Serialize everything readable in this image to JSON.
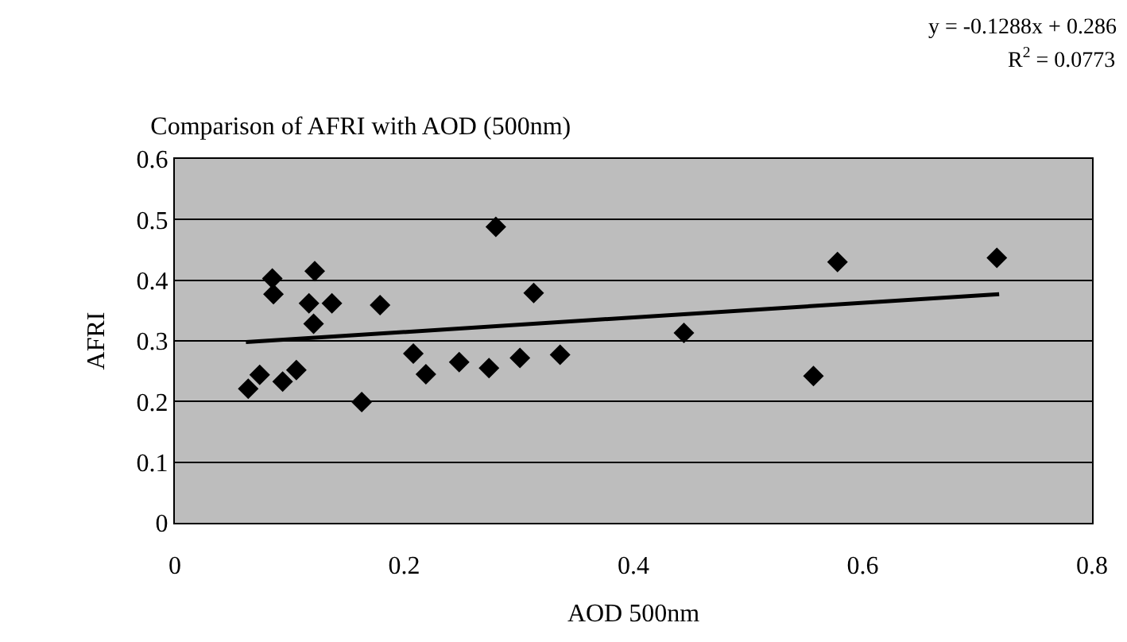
{
  "chart_data": {
    "type": "scatter",
    "title": "Comparison of AFRI with AOD (500nm)",
    "xlabel": "AOD 500nm",
    "ylabel": "AFRI",
    "annotations": [
      "y = -0.1288x + 0.286",
      "R$^{2}$ = 0.0773"
    ],
    "series": [
      {
        "color": "#000000",
        "marker": "diamond",
        "x": [
          0.064,
          0.074,
          0.085,
          0.086,
          0.094,
          0.106,
          0.117,
          0.122,
          0.121,
          0.137,
          0.163,
          0.179,
          0.208,
          0.219,
          0.248,
          0.274,
          0.28,
          0.301,
          0.313,
          0.336,
          0.444,
          0.557,
          0.578,
          0.717
        ],
        "values": [
          0.221,
          0.244,
          0.403,
          0.377,
          0.233,
          0.252,
          0.362,
          0.415,
          0.328,
          0.362,
          0.199,
          0.359,
          0.279,
          0.245,
          0.265,
          0.255,
          0.488,
          0.272,
          0.379,
          0.277,
          0.313,
          0.242,
          0.43,
          0.437
        ]
      },
      {
        "type": "line",
        "color": "#000000",
        "marker": "none",
        "line_style": "solid",
        "x": [
          0.062,
          0.719
        ],
        "values": [
          0.298,
          0.377
        ]
      }
    ],
    "xlim": [
      0,
      0.8
    ],
    "xticks": [
      0,
      0.2,
      0.4,
      0.6,
      0.8
    ],
    "ylim": [
      0,
      0.6
    ],
    "yticks": [
      0,
      0.1,
      0.2,
      0.3,
      0.4,
      0.5,
      0.6
    ],
    "grid": "y"
  }
}
